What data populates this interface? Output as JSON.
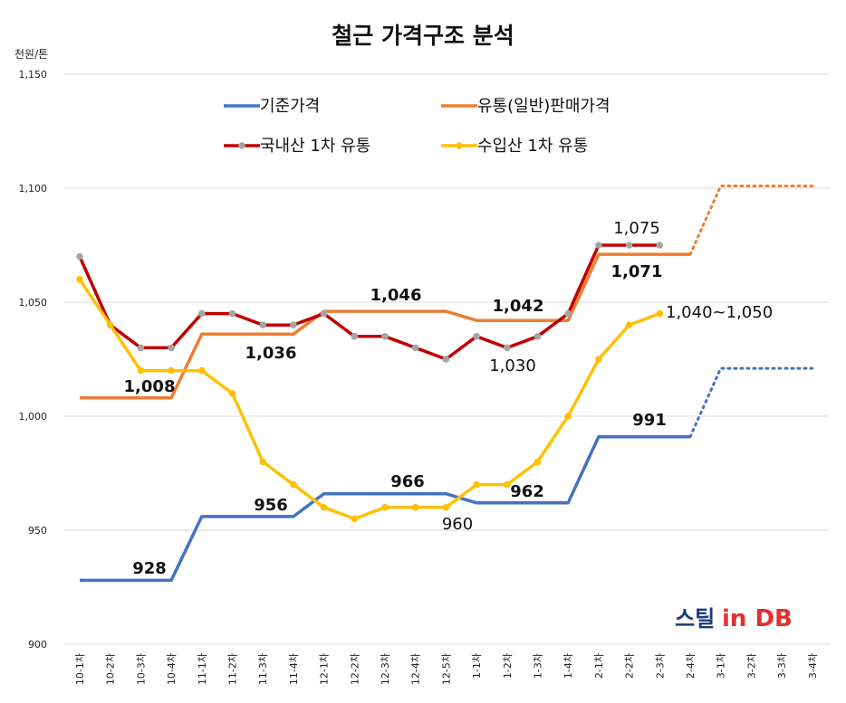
{
  "chart_data": {
    "type": "line",
    "title": "철근 가격구조 분석",
    "ylabel": "천원/톤",
    "ylim": [
      900,
      1150
    ],
    "yticks": [
      "900",
      "950",
      "1,000",
      "1,050",
      "1,100",
      "1,150"
    ],
    "categories": [
      "10-1차",
      "10-2차",
      "10-3차",
      "10-4차",
      "11-1차",
      "11-2차",
      "11-3차",
      "11-4차",
      "12-1차",
      "12-2차",
      "12-3차",
      "12-4차",
      "12-5차",
      "1-1차",
      "1-2차",
      "1-3차",
      "1-4차",
      "2-1차",
      "2-2차",
      "2-3차",
      "2-4차",
      "3-1차",
      "3-2차",
      "3-3차",
      "3-4차"
    ],
    "series": [
      {
        "name": "기준가격",
        "color": "#4472C4",
        "markers": false,
        "values": [
          928,
          928,
          928,
          928,
          956,
          956,
          956,
          956,
          966,
          966,
          966,
          966,
          966,
          962,
          962,
          962,
          962,
          991,
          991,
          991,
          991,
          null,
          null,
          null,
          null
        ],
        "projected": [
          null,
          null,
          null,
          null,
          null,
          null,
          null,
          null,
          null,
          null,
          null,
          null,
          null,
          null,
          null,
          null,
          null,
          null,
          null,
          null,
          991,
          1021,
          1021,
          1021,
          1021
        ]
      },
      {
        "name": "유통(일반)판매가격",
        "color": "#ED7D31",
        "markers": false,
        "values": [
          1008,
          1008,
          1008,
          1008,
          1036,
          1036,
          1036,
          1036,
          1046,
          1046,
          1046,
          1046,
          1046,
          1042,
          1042,
          1042,
          1042,
          1071,
          1071,
          1071,
          1071,
          null,
          null,
          null,
          null
        ],
        "projected": [
          null,
          null,
          null,
          null,
          null,
          null,
          null,
          null,
          null,
          null,
          null,
          null,
          null,
          null,
          null,
          null,
          null,
          null,
          null,
          null,
          1071,
          1101,
          1101,
          1101,
          1101
        ]
      },
      {
        "name": "국내산 1차 유통",
        "color": "#C00000",
        "markers": true,
        "marker_color": "#A5A5A5",
        "values": [
          1070,
          1040,
          1030,
          1030,
          1045,
          1045,
          1040,
          1040,
          1045,
          1035,
          1035,
          1030,
          1025,
          1035,
          1030,
          1035,
          1045,
          1075,
          1075,
          1075,
          null,
          null,
          null,
          null,
          null
        ]
      },
      {
        "name": "수입산 1차 유통",
        "color": "#FFC000",
        "markers": true,
        "marker_color": "#FFC000",
        "values": [
          1060,
          1040,
          1020,
          1020,
          1020,
          1010,
          980,
          970,
          960,
          955,
          960,
          960,
          960,
          970,
          970,
          980,
          1000,
          1025,
          1040,
          1045,
          null,
          null,
          null,
          null,
          null
        ]
      }
    ],
    "annotations": [
      {
        "text": "928",
        "bold": true
      },
      {
        "text": "1,008",
        "bold": true
      },
      {
        "text": "956",
        "bold": true
      },
      {
        "text": "1,036",
        "bold": true
      },
      {
        "text": "966",
        "bold": true
      },
      {
        "text": "1,046",
        "bold": true
      },
      {
        "text": "960",
        "bold": false
      },
      {
        "text": "962",
        "bold": true
      },
      {
        "text": "1,030",
        "bold": false
      },
      {
        "text": "1,042",
        "bold": true
      },
      {
        "text": "991",
        "bold": true
      },
      {
        "text": "1,071",
        "bold": true
      },
      {
        "text": "1,075",
        "bold": false
      },
      {
        "text": "1,040~1,050",
        "bold": false
      }
    ],
    "grid": "horizontal-only",
    "legend_placement": "top-center"
  },
  "watermark": {
    "part1": "스틸",
    "part2": "in DB"
  }
}
